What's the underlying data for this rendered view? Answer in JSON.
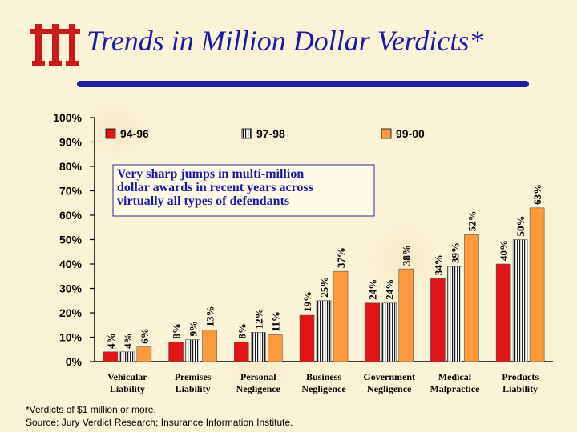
{
  "header": {
    "logo_text": "iii",
    "title": "Trends in Million Dollar Verdicts*"
  },
  "footnote": {
    "line1": "*Verdicts of $1 million or more.",
    "line2": "Source: Jury Verdict Research; Insurance Information Institute."
  },
  "colors": {
    "title": "#1a1aa8",
    "logo": "#cc1a1a",
    "rule": "#1e1ea0",
    "series_94_96": "#e21414",
    "series_97_98": "#ffffff",
    "series_99_00": "#ff9a3c"
  },
  "chart_data": {
    "type": "bar",
    "title": "",
    "xlabel": "",
    "ylabel": "",
    "ylim": [
      0,
      100
    ],
    "yticks": [
      "0%",
      "10%",
      "20%",
      "30%",
      "40%",
      "50%",
      "60%",
      "70%",
      "80%",
      "90%",
      "100%"
    ],
    "categories": [
      [
        "Vehicular",
        "Liability"
      ],
      [
        "Premises",
        "Liability"
      ],
      [
        "Personal",
        "Negligence"
      ],
      [
        "Business",
        "Negligence"
      ],
      [
        "Government",
        "Negligence"
      ],
      [
        "Medical",
        "Malpractice"
      ],
      [
        "Products",
        "Liability"
      ]
    ],
    "series": [
      {
        "name": "94-96",
        "values": [
          4,
          8,
          8,
          19,
          24,
          34,
          40
        ],
        "labels": [
          "4%",
          "8%",
          "8%",
          "19%",
          "24%",
          "34%",
          "40%"
        ]
      },
      {
        "name": "97-98",
        "values": [
          4,
          9,
          12,
          25,
          24,
          39,
          50
        ],
        "labels": [
          "4%",
          "9%",
          "12%",
          "25%",
          "24%",
          "39%",
          "50%"
        ]
      },
      {
        "name": "99-00",
        "values": [
          6,
          13,
          11,
          37,
          38,
          52,
          63
        ],
        "labels": [
          "6%",
          "13%",
          "11%",
          "37%",
          "38%",
          "52%",
          "63%"
        ]
      }
    ],
    "legend_position": "top",
    "annotation": [
      "Very sharp jumps in multi-million",
      "dollar awards in recent years across",
      "virtually all types of defendants"
    ]
  }
}
